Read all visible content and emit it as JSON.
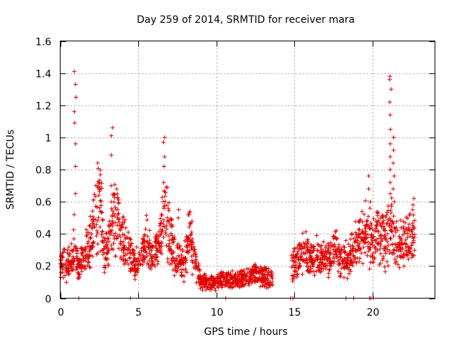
{
  "chart_data": {
    "type": "scatter",
    "title": "Day 259 of 2014, SRMTID for receiver mara",
    "xlabel": "GPS time / hours",
    "ylabel": "SRMTID / TECUs",
    "xlim": [
      0,
      24
    ],
    "ylim": [
      0,
      1.6
    ],
    "xticks": [
      0,
      5,
      10,
      15,
      20
    ],
    "xtick_labels": [
      "0",
      "5",
      "10",
      "15",
      "20"
    ],
    "yticks": [
      0,
      0.2,
      0.4,
      0.6,
      0.8,
      1,
      1.2,
      1.4,
      1.6
    ],
    "ytick_labels": [
      "0",
      "0.2",
      "0.4",
      "0.6",
      "0.8",
      "1",
      "1.2",
      "1.4",
      "1.6"
    ],
    "grid": true,
    "marker": "+",
    "color": "#e00000",
    "series": [
      {
        "name": "SRMTID",
        "trend": [
          [
            0.0,
            0.22
          ],
          [
            0.3,
            0.2
          ],
          [
            0.6,
            0.22
          ],
          [
            0.9,
            0.3
          ],
          [
            1.2,
            0.18
          ],
          [
            1.6,
            0.28
          ],
          [
            2.0,
            0.35
          ],
          [
            2.3,
            0.55
          ],
          [
            2.6,
            0.6
          ],
          [
            2.9,
            0.25
          ],
          [
            3.3,
            0.45
          ],
          [
            3.6,
            0.55
          ],
          [
            4.0,
            0.35
          ],
          [
            4.4,
            0.3
          ],
          [
            4.7,
            0.22
          ],
          [
            5.1,
            0.2
          ],
          [
            5.5,
            0.35
          ],
          [
            5.9,
            0.25
          ],
          [
            6.3,
            0.3
          ],
          [
            6.7,
            0.55
          ],
          [
            7.1,
            0.35
          ],
          [
            7.5,
            0.25
          ],
          [
            7.9,
            0.2
          ],
          [
            8.3,
            0.4
          ],
          [
            8.7,
            0.2
          ],
          [
            9.0,
            0.1
          ],
          [
            9.5,
            0.1
          ],
          [
            10.0,
            0.1
          ],
          [
            10.5,
            0.12
          ],
          [
            11.0,
            0.11
          ],
          [
            11.5,
            0.12
          ],
          [
            12.0,
            0.13
          ],
          [
            12.5,
            0.14
          ],
          [
            13.0,
            0.14
          ],
          [
            13.6,
            0.12
          ],
          [
            14.8,
            0.18
          ],
          [
            15.2,
            0.25
          ],
          [
            15.6,
            0.28
          ],
          [
            16.0,
            0.25
          ],
          [
            16.4,
            0.27
          ],
          [
            16.8,
            0.24
          ],
          [
            17.2,
            0.26
          ],
          [
            17.6,
            0.3
          ],
          [
            18.0,
            0.22
          ],
          [
            18.4,
            0.25
          ],
          [
            18.8,
            0.3
          ],
          [
            19.2,
            0.35
          ],
          [
            19.6,
            0.4
          ],
          [
            20.0,
            0.32
          ],
          [
            20.4,
            0.42
          ],
          [
            20.8,
            0.35
          ],
          [
            21.2,
            0.45
          ],
          [
            21.6,
            0.3
          ],
          [
            22.0,
            0.35
          ],
          [
            22.4,
            0.38
          ],
          [
            22.7,
            0.35
          ]
        ],
        "spikes": [
          {
            "x": 0.95,
            "values": [
              1.41,
              1.33,
              1.25,
              1.16,
              1.09,
              0.96,
              0.82,
              0.65,
              0.52
            ]
          },
          {
            "x": 3.3,
            "values": [
              1.06,
              1.01,
              0.89,
              0.7,
              0.6
            ]
          },
          {
            "x": 6.65,
            "values": [
              1.0,
              0.97,
              0.88,
              0.82,
              0.72,
              0.6
            ]
          },
          {
            "x": 2.5,
            "values": [
              0.72,
              0.68,
              0.64
            ]
          },
          {
            "x": 7.6,
            "values": [
              0.55,
              0.5
            ]
          },
          {
            "x": 8.3,
            "values": [
              0.54,
              0.52
            ]
          },
          {
            "x": 19.8,
            "values": [
              0.76,
              0.68,
              0.6,
              0.56
            ]
          },
          {
            "x": 21.15,
            "values": [
              1.38,
              1.36,
              1.3,
              1.22,
              1.14,
              1.05,
              0.96,
              0.88,
              0.8,
              0.72,
              0.65
            ]
          },
          {
            "x": 21.35,
            "values": [
              1.0,
              0.92,
              0.84,
              0.76,
              0.68,
              0.6
            ]
          },
          {
            "x": 22.6,
            "values": [
              0.62,
              0.58,
              0.55
            ]
          }
        ],
        "zeros": [
          1.2,
          4.5,
          10.6,
          14.75,
          14.9,
          18.3,
          18.8,
          19.8,
          19.9,
          20.05
        ]
      }
    ]
  }
}
